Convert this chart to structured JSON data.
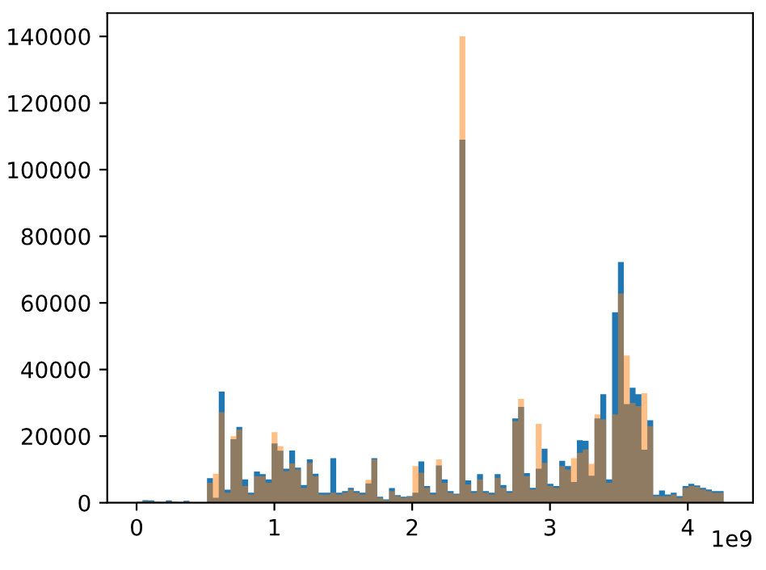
{
  "chart_data": {
    "type": "histogram",
    "bins": [
      0,
      0.0426,
      0.0852,
      0.1278,
      0.1704,
      0.213,
      0.2556,
      0.2982,
      0.3408,
      0.3834,
      0.426,
      0.4686,
      0.5112,
      0.5538,
      0.5964,
      0.639,
      0.6816,
      0.7242,
      0.7668,
      0.8094,
      0.852,
      0.8946,
      0.9372,
      0.9798,
      1.0224,
      1.065,
      1.1076,
      1.1502,
      1.1928,
      1.2354,
      1.278,
      1.3206,
      1.3632,
      1.4058,
      1.4484,
      1.491,
      1.5336,
      1.5762,
      1.6188,
      1.6614,
      1.704,
      1.7466,
      1.7892,
      1.8318,
      1.8744,
      1.917,
      1.9596,
      2.0022,
      2.0448,
      2.0874,
      2.13,
      2.1726,
      2.2152,
      2.2578,
      2.3004,
      2.343,
      2.3856,
      2.4282,
      2.4708,
      2.5134,
      2.556,
      2.5986,
      2.6412,
      2.6838,
      2.7264,
      2.769,
      2.8116,
      2.8542,
      2.8968,
      2.9394,
      2.982,
      3.0246,
      3.0672,
      3.1098,
      3.1524,
      3.195,
      3.2376,
      3.2802,
      3.3228,
      3.3654,
      3.408,
      3.4506,
      3.4932,
      3.5358,
      3.5784,
      3.621,
      3.6636,
      3.7062,
      3.7488,
      3.7914,
      3.834,
      3.8766,
      3.9192,
      3.9618,
      4.0044,
      4.047,
      4.0896,
      4.1322,
      4.1748,
      4.2174,
      4.26
    ],
    "series": [
      {
        "color": "#1f77b4",
        "values": [
          300,
          800,
          700,
          300,
          200,
          700,
          300,
          200,
          600,
          100,
          0,
          0,
          7400,
          1500,
          33400,
          3900,
          19100,
          22800,
          7000,
          3000,
          9400,
          8600,
          7000,
          17800,
          15600,
          10200,
          15700,
          10500,
          5300,
          13000,
          8700,
          3000,
          3000,
          13400,
          3000,
          3500,
          4500,
          3500,
          3000,
          5800,
          13400,
          1800,
          1000,
          4400,
          2300,
          1800,
          2000,
          3000,
          12400,
          5000,
          3000,
          11200,
          7000,
          3500,
          2700,
          109000,
          6700,
          3500,
          8600,
          3500,
          3000,
          8600,
          5300,
          3500,
          25300,
          28800,
          8900,
          4500,
          10200,
          16200,
          5700,
          5000,
          12600,
          11000,
          6200,
          18800,
          18600,
          8100,
          25300,
          32600,
          7000,
          57200,
          72300,
          29600,
          34500,
          32600,
          15900,
          24800,
          2400,
          3700,
          2500,
          3000,
          2000,
          5000,
          5700,
          5200,
          4500,
          4000,
          3500,
          3500
        ]
      },
      {
        "color": "#ff7f0e",
        "values": [
          200,
          500,
          400,
          200,
          100,
          400,
          200,
          100,
          400,
          0,
          0,
          0,
          6000,
          8700,
          27200,
          3000,
          20000,
          22000,
          5000,
          2500,
          8000,
          8000,
          6000,
          21200,
          17000,
          9500,
          11800,
          10000,
          4500,
          12000,
          8000,
          2500,
          2500,
          3000,
          2500,
          3000,
          4000,
          3000,
          2500,
          6900,
          13000,
          1500,
          800,
          3500,
          2000,
          1500,
          1800,
          11000,
          9000,
          4500,
          2500,
          13000,
          6000,
          3000,
          2500,
          140000,
          5500,
          3000,
          7000,
          3000,
          2500,
          7500,
          4500,
          3000,
          24500,
          31200,
          8000,
          4000,
          23700,
          12000,
          5000,
          4500,
          11000,
          10000,
          13400,
          15000,
          16000,
          11700,
          26500,
          25000,
          6000,
          26500,
          62800,
          44200,
          30000,
          29000,
          32900,
          23000,
          2000,
          2000,
          2000,
          2500,
          1500,
          4500,
          5000,
          4800,
          4000,
          3500,
          3000,
          3000
        ]
      }
    ],
    "xlim": [
      -0.213,
      4.473
    ],
    "xticks": [
      0,
      1,
      2,
      3,
      4
    ],
    "ylim": [
      0,
      147000
    ],
    "yticks": [
      0,
      20000,
      40000,
      60000,
      80000,
      100000,
      120000,
      140000
    ],
    "annotations": [
      "1e9"
    ]
  }
}
